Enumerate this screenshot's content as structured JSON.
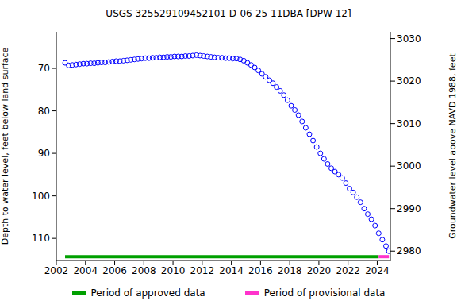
{
  "chart_data": {
    "type": "scatter",
    "title": "USGS 325529109452101 D-06-25 11DBA [DPW-12]",
    "y_label": "Depth to water level, feet below land surface",
    "y2_label": "Groundwater level above NAVD 1988, feet",
    "color": "#0000ff",
    "marker": "open circle",
    "x": [
      2002.6,
      2002.85,
      2003.1,
      2003.35,
      2003.6,
      2003.85,
      2004.1,
      2004.35,
      2004.6,
      2004.85,
      2005.1,
      2005.35,
      2005.6,
      2005.85,
      2006.1,
      2006.35,
      2006.6,
      2006.85,
      2007.1,
      2007.35,
      2007.6,
      2007.85,
      2008.1,
      2008.35,
      2008.6,
      2008.85,
      2009.1,
      2009.35,
      2009.6,
      2009.85,
      2010.1,
      2010.35,
      2010.6,
      2010.85,
      2011.1,
      2011.35,
      2011.6,
      2011.85,
      2012.1,
      2012.35,
      2012.6,
      2012.85,
      2013.1,
      2013.35,
      2013.6,
      2013.85,
      2014.1,
      2014.35,
      2014.6,
      2014.85,
      2015.1,
      2015.35,
      2015.6,
      2015.85,
      2016.1,
      2016.35,
      2016.6,
      2016.85,
      2017.1,
      2017.35,
      2017.6,
      2017.85,
      2018.1,
      2018.35,
      2018.6,
      2018.85,
      2019.1,
      2019.35,
      2019.6,
      2019.85,
      2020.1,
      2020.35,
      2020.6,
      2020.85,
      2021.1,
      2021.35,
      2021.6,
      2021.85,
      2022.1,
      2022.35,
      2022.6,
      2022.85,
      2023.1,
      2023.35,
      2023.6,
      2023.85,
      2024.1,
      2024.35,
      2024.6,
      2024.8
    ],
    "values": [
      68.7,
      69.3,
      69.2,
      69.1,
      69.0,
      68.9,
      68.9,
      68.8,
      68.8,
      68.7,
      68.6,
      68.6,
      68.5,
      68.4,
      68.3,
      68.3,
      68.2,
      68.1,
      68.0,
      67.9,
      67.8,
      67.7,
      67.6,
      67.6,
      67.5,
      67.5,
      67.4,
      67.4,
      67.3,
      67.3,
      67.2,
      67.2,
      67.2,
      67.1,
      67.1,
      67.0,
      66.9,
      67.0,
      67.1,
      67.2,
      67.3,
      67.4,
      67.5,
      67.5,
      67.6,
      67.6,
      67.7,
      67.7,
      67.9,
      68.2,
      68.7,
      69.2,
      69.8,
      70.5,
      71.3,
      72.0,
      72.8,
      73.5,
      74.4,
      75.3,
      76.3,
      77.5,
      78.8,
      79.8,
      81.0,
      82.5,
      84.0,
      85.5,
      87.0,
      88.5,
      90.0,
      91.3,
      92.5,
      93.5,
      94.3,
      95.0,
      95.8,
      97.0,
      98.3,
      99.2,
      100.3,
      101.5,
      103.0,
      104.3,
      105.5,
      107.0,
      108.8,
      110.3,
      111.8,
      113.0
    ],
    "periods": [
      {
        "name": "Period of approved data",
        "color": "#00a000",
        "start": 2002.6,
        "end": 2024.1,
        "level": 114.3
      },
      {
        "name": "Period of provisional data",
        "color": "#ff33cc",
        "start": 2024.1,
        "end": 2024.8,
        "level": 114.3
      }
    ],
    "xlim": [
      2002,
      2024.9
    ],
    "xticks": [
      2002,
      2004,
      2006,
      2008,
      2010,
      2012,
      2014,
      2016,
      2018,
      2020,
      2022,
      2024
    ],
    "ylim": [
      115.2,
      61.4
    ],
    "yticks": [
      70,
      80,
      90,
      100,
      110
    ],
    "y2lim": [
      2977.8,
      3031.6
    ],
    "y2ticks": [
      2980,
      2990,
      3000,
      3010,
      3020,
      3030
    ],
    "grid": false,
    "legend": "bottom"
  }
}
